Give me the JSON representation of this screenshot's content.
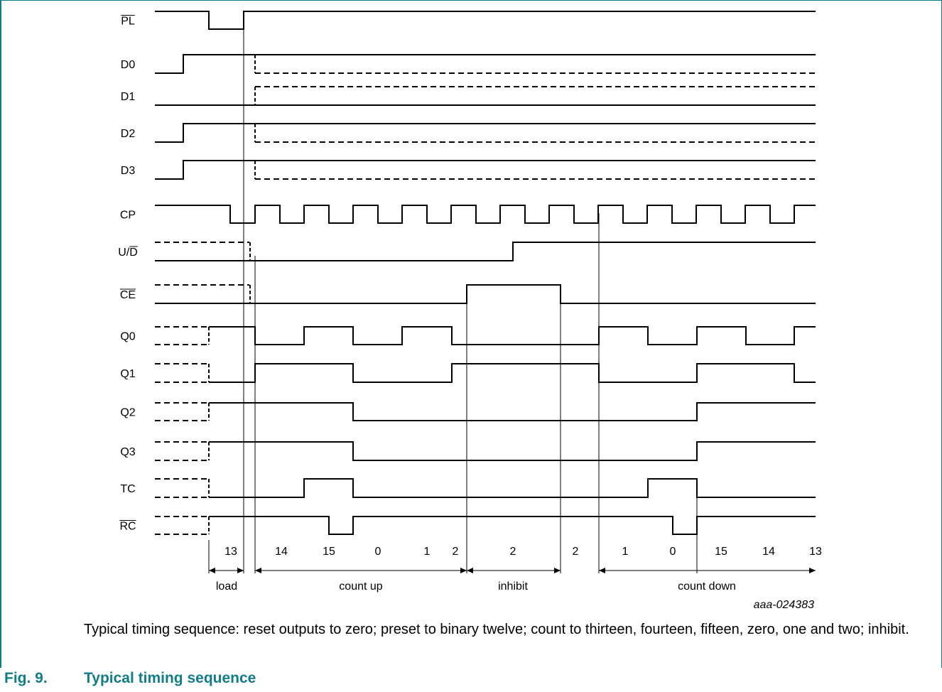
{
  "signals": [
    {
      "id": "pl",
      "label": "PL",
      "overbar": true
    },
    {
      "id": "d0",
      "label": "D0",
      "overbar": false
    },
    {
      "id": "d1",
      "label": "D1",
      "overbar": false
    },
    {
      "id": "d2",
      "label": "D2",
      "overbar": false
    },
    {
      "id": "d3",
      "label": "D3",
      "overbar": false
    },
    {
      "id": "cp",
      "label": "CP",
      "overbar": false
    },
    {
      "id": "ud",
      "label": "U/D",
      "overbar_part": "D"
    },
    {
      "id": "ce",
      "label": "CE",
      "overbar": true
    },
    {
      "id": "q0",
      "label": "Q0",
      "overbar": false
    },
    {
      "id": "q1",
      "label": "Q1",
      "overbar": false
    },
    {
      "id": "q2",
      "label": "Q2",
      "overbar": false
    },
    {
      "id": "q3",
      "label": "Q3",
      "overbar": false
    },
    {
      "id": "tc",
      "label": "TC",
      "overbar": false
    },
    {
      "id": "rc",
      "label": "RC",
      "overbar": true
    }
  ],
  "count_values": [
    "13",
    "14",
    "15",
    "0",
    "1",
    "2",
    "2",
    "2",
    "1",
    "0",
    "15",
    "14",
    "13"
  ],
  "phases": [
    "load",
    "count up",
    "inhibit",
    "count down"
  ],
  "drawing_id": "aaa-024383",
  "caption": "Typical timing sequence: reset outputs to zero; preset to binary twelve; count to thirteen, fourteen, fifteen, zero, one and two; inhibit.",
  "figure": {
    "number": "Fig. 9.",
    "title": "Typical timing sequence"
  },
  "colors": {
    "frame": "#0f7d8c",
    "figure_title": "#127d8a",
    "waveform": "#000000"
  }
}
